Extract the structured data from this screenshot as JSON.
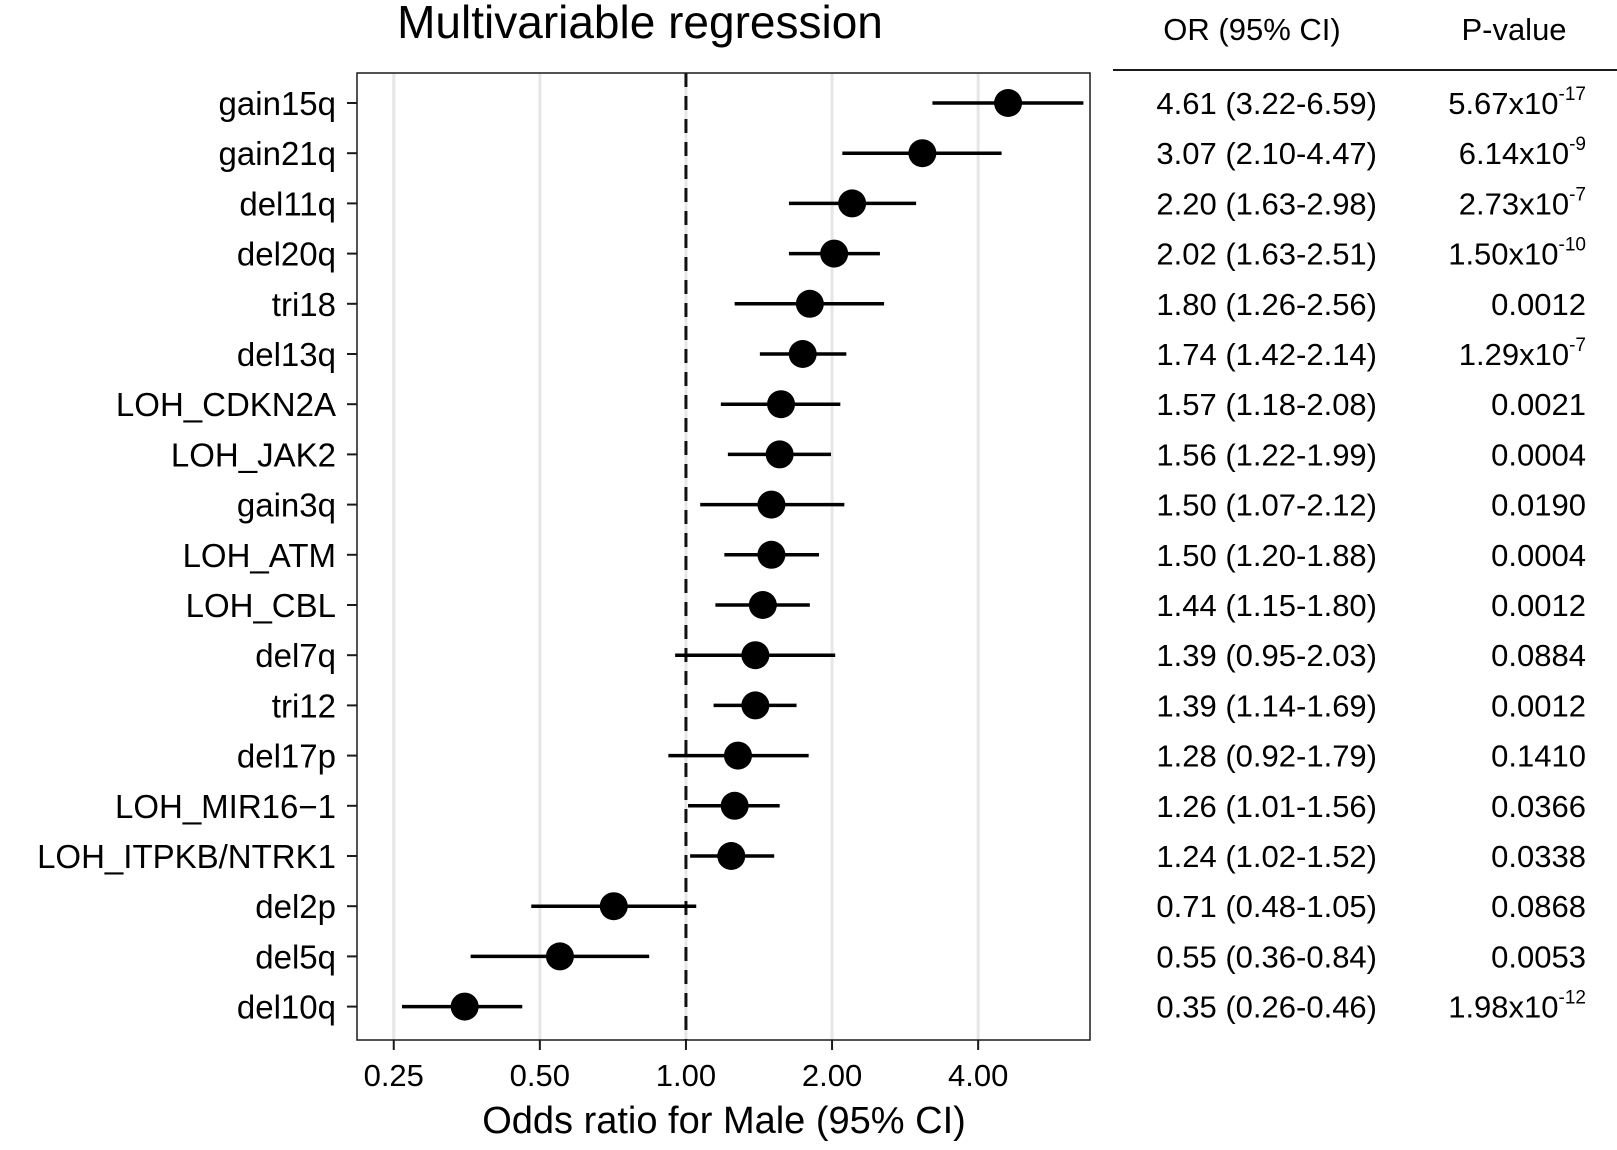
{
  "chart_data": {
    "type": "forest",
    "title": "Multivariable regression",
    "xlabel": "Odds ratio for Male (95% CI)",
    "ylabel": "",
    "x_scale": "log2",
    "xlim": [
      0.21,
      6.8
    ],
    "x_ticks": [
      0.25,
      0.5,
      1.0,
      2.0,
      4.0
    ],
    "x_tick_labels": [
      "0.25",
      "0.50",
      "1.00",
      "2.00",
      "4.00"
    ],
    "reference_line": 1.0,
    "grid": "vertical",
    "table_headers": {
      "or_ci": "OR (95% CI)",
      "p_value": "P-value"
    },
    "rows": [
      {
        "label": "gain15q",
        "or": 4.61,
        "lower": 3.22,
        "upper": 6.59,
        "or_text": "4.61 (3.22-6.59)",
        "p_mantissa": "5.67x10",
        "p_exp": "-17"
      },
      {
        "label": "gain21q",
        "or": 3.07,
        "lower": 2.1,
        "upper": 4.47,
        "or_text": "3.07 (2.10-4.47)",
        "p_mantissa": "6.14x10",
        "p_exp": "-9"
      },
      {
        "label": "del11q",
        "or": 2.2,
        "lower": 1.63,
        "upper": 2.98,
        "or_text": "2.20 (1.63-2.98)",
        "p_mantissa": "2.73x10",
        "p_exp": "-7"
      },
      {
        "label": "del20q",
        "or": 2.02,
        "lower": 1.63,
        "upper": 2.51,
        "or_text": "2.02 (1.63-2.51)",
        "p_mantissa": "1.50x10",
        "p_exp": "-10"
      },
      {
        "label": "tri18",
        "or": 1.8,
        "lower": 1.26,
        "upper": 2.56,
        "or_text": "1.80 (1.26-2.56)",
        "p_mantissa": "0.0012",
        "p_exp": ""
      },
      {
        "label": "del13q",
        "or": 1.74,
        "lower": 1.42,
        "upper": 2.14,
        "or_text": "1.74 (1.42-2.14)",
        "p_mantissa": "1.29x10",
        "p_exp": "-7"
      },
      {
        "label": "LOH_CDKN2A",
        "or": 1.57,
        "lower": 1.18,
        "upper": 2.08,
        "or_text": "1.57 (1.18-2.08)",
        "p_mantissa": "0.0021",
        "p_exp": ""
      },
      {
        "label": "LOH_JAK2",
        "or": 1.56,
        "lower": 1.22,
        "upper": 1.99,
        "or_text": "1.56 (1.22-1.99)",
        "p_mantissa": "0.0004",
        "p_exp": ""
      },
      {
        "label": "gain3q",
        "or": 1.5,
        "lower": 1.07,
        "upper": 2.12,
        "or_text": "1.50 (1.07-2.12)",
        "p_mantissa": "0.0190",
        "p_exp": ""
      },
      {
        "label": "LOH_ATM",
        "or": 1.5,
        "lower": 1.2,
        "upper": 1.88,
        "or_text": "1.50 (1.20-1.88)",
        "p_mantissa": "0.0004",
        "p_exp": ""
      },
      {
        "label": "LOH_CBL",
        "or": 1.44,
        "lower": 1.15,
        "upper": 1.8,
        "or_text": "1.44 (1.15-1.80)",
        "p_mantissa": "0.0012",
        "p_exp": ""
      },
      {
        "label": "del7q",
        "or": 1.39,
        "lower": 0.95,
        "upper": 2.03,
        "or_text": "1.39 (0.95-2.03)",
        "p_mantissa": "0.0884",
        "p_exp": ""
      },
      {
        "label": "tri12",
        "or": 1.39,
        "lower": 1.14,
        "upper": 1.69,
        "or_text": "1.39 (1.14-1.69)",
        "p_mantissa": "0.0012",
        "p_exp": ""
      },
      {
        "label": "del17p",
        "or": 1.28,
        "lower": 0.92,
        "upper": 1.79,
        "or_text": "1.28 (0.92-1.79)",
        "p_mantissa": "0.1410",
        "p_exp": ""
      },
      {
        "label": "LOH_MIR16−1",
        "or": 1.26,
        "lower": 1.01,
        "upper": 1.56,
        "or_text": "1.26 (1.01-1.56)",
        "p_mantissa": "0.0366",
        "p_exp": ""
      },
      {
        "label": "LOH_ITPKB/NTRK1",
        "or": 1.24,
        "lower": 1.02,
        "upper": 1.52,
        "or_text": "1.24 (1.02-1.52)",
        "p_mantissa": "0.0338",
        "p_exp": ""
      },
      {
        "label": "del2p",
        "or": 0.71,
        "lower": 0.48,
        "upper": 1.05,
        "or_text": "0.71 (0.48-1.05)",
        "p_mantissa": "0.0868",
        "p_exp": ""
      },
      {
        "label": "del5q",
        "or": 0.55,
        "lower": 0.36,
        "upper": 0.84,
        "or_text": "0.55 (0.36-0.84)",
        "p_mantissa": "0.0053",
        "p_exp": ""
      },
      {
        "label": "del10q",
        "or": 0.35,
        "lower": 0.26,
        "upper": 0.46,
        "or_text": "0.35 (0.26-0.46)",
        "p_mantissa": "1.98x10",
        "p_exp": "-12"
      }
    ]
  }
}
